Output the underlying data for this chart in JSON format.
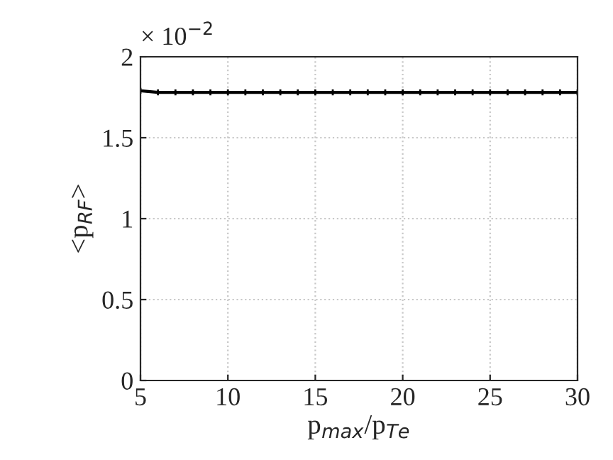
{
  "chart_data": {
    "type": "line",
    "x": [
      5,
      6,
      7,
      8,
      9,
      10,
      11,
      12,
      13,
      14,
      15,
      16,
      17,
      18,
      19,
      20,
      21,
      22,
      23,
      24,
      25,
      26,
      27,
      28,
      29,
      30
    ],
    "series": [
      {
        "color": "#000000",
        "values": [
          1.79,
          1.78,
          1.78,
          1.78,
          1.78,
          1.78,
          1.78,
          1.78,
          1.78,
          1.78,
          1.78,
          1.78,
          1.78,
          1.78,
          1.78,
          1.78,
          1.78,
          1.78,
          1.78,
          1.78,
          1.78,
          1.78,
          1.78,
          1.78,
          1.78,
          1.78
        ]
      }
    ],
    "xlabel": "p$_{max}$/p$_{Te}$",
    "ylabel": "<p$_{RF}$>",
    "annotations": [
      "× 10$^{−2}$"
    ],
    "xlim": [
      5,
      30
    ],
    "xticks": [
      5,
      10,
      15,
      20,
      25,
      30
    ],
    "ylim": [
      0,
      2
    ],
    "yticks": [
      0,
      0.5,
      1,
      1.5,
      2
    ],
    "grid": true,
    "marker": "cross",
    "line_style": "solid"
  }
}
